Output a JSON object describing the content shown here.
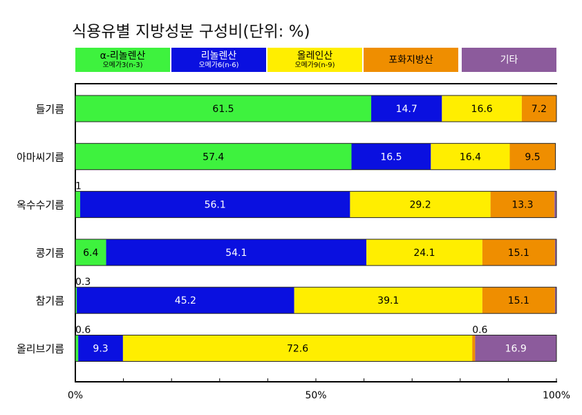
{
  "title": "식용유별 지방성분 구성비(단위: %)",
  "chart_data": {
    "type": "bar",
    "orientation": "horizontal",
    "stacked": true,
    "title": "식용유별 지방성분 구성비(단위: %)",
    "xlim": [
      0,
      100
    ],
    "x_ticks": [
      "0%",
      "50%",
      "100%"
    ],
    "grid": false,
    "legend_position": "top",
    "categories": [
      "들기름",
      "아마씨기름",
      "옥수수기름",
      "콩기름",
      "참기름",
      "올리브기름"
    ],
    "series": [
      {
        "name": "α-리놀렌산",
        "subname": "오메가3(n-3)",
        "color": "#3ef23e",
        "text_color": "#000000",
        "values": [
          61.5,
          57.4,
          1,
          6.4,
          0.3,
          0.6
        ],
        "labels": [
          "61.5",
          "57.4",
          "1",
          "6.4",
          "0.3",
          "0.6"
        ]
      },
      {
        "name": "리놀렌산",
        "subname": "오메가6(n-6)",
        "color": "#0a10e0",
        "text_color": "#ffffff",
        "values": [
          14.7,
          16.5,
          56.1,
          54.1,
          45.2,
          9.3
        ],
        "labels": [
          "14.7",
          "16.5",
          "56.1",
          "54.1",
          "45.2",
          "9.3"
        ]
      },
      {
        "name": "올레인산",
        "subname": "오메가9(n-9)",
        "color": "#ffee00",
        "text_color": "#000000",
        "values": [
          16.6,
          16.4,
          29.2,
          24.1,
          39.1,
          72.6
        ],
        "labels": [
          "16.6",
          "16.4",
          "29.2",
          "24.1",
          "39.1",
          "72.6"
        ]
      },
      {
        "name": "포화지방산",
        "subname": "",
        "color": "#ef8e00",
        "text_color": "#000000",
        "values": [
          7.2,
          9.5,
          13.3,
          15.1,
          15.1,
          0.6
        ],
        "labels": [
          "7.2",
          "9.5",
          "13.3",
          "15.1",
          "15.1",
          "0.6"
        ]
      },
      {
        "name": "기타",
        "subname": "",
        "color": "#8c5b9c",
        "text_color": "#ffffff",
        "values": [
          0,
          0,
          0.4,
          0.3,
          0.3,
          16.9
        ],
        "labels": [
          "",
          "",
          "",
          "",
          "",
          "16.9"
        ]
      }
    ]
  }
}
